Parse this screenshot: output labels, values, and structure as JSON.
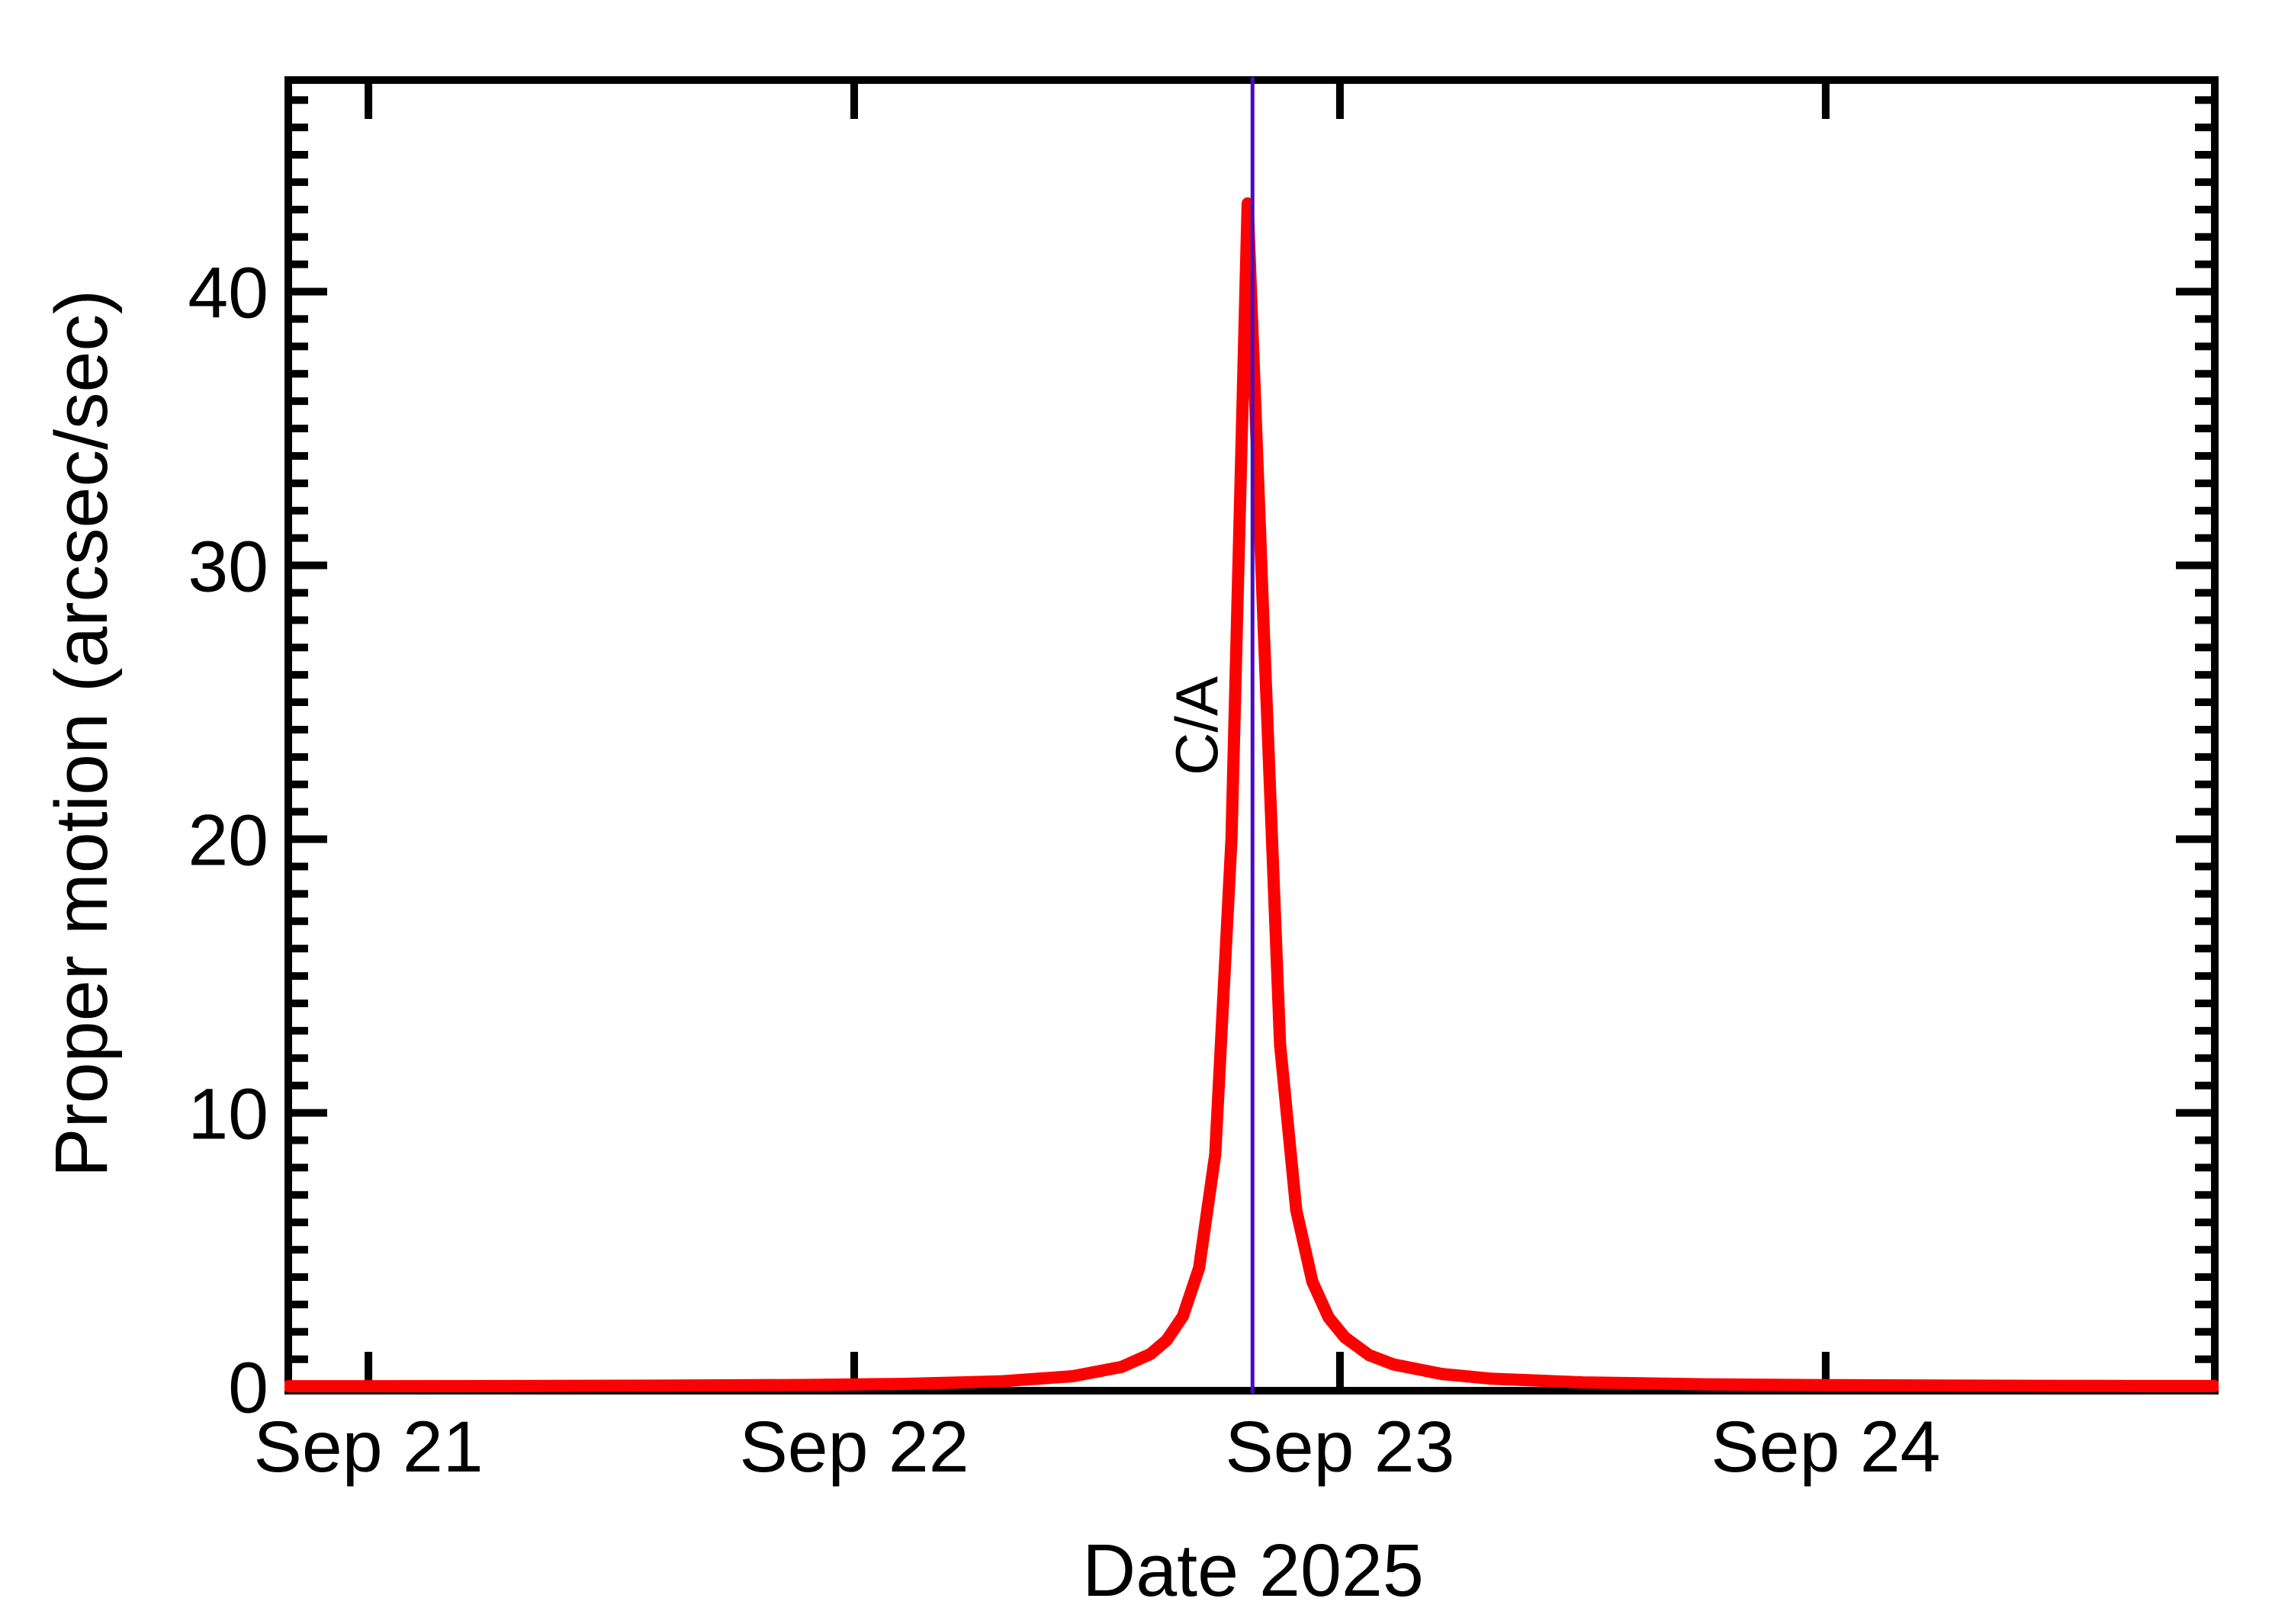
{
  "colors": {
    "background": "#FFFFFF",
    "axis": "#000000",
    "curve": "#FF0000",
    "annotation": "#4A0CC0"
  },
  "chart_data": {
    "type": "line",
    "title": "",
    "xlabel": "Date 2025",
    "ylabel": "Proper motion (arcsec/sec)",
    "x_axis_unit": "days after Sep 21 2025 00:00",
    "xlim": [
      -0.165,
      3.801
    ],
    "ylim": [
      -0.15,
      47.73
    ],
    "grid": false,
    "legend": "none",
    "x_ticks": [
      {
        "t": 0,
        "label": "Sep 21"
      },
      {
        "t": 1,
        "label": "Sep 22"
      },
      {
        "t": 2,
        "label": "Sep 23"
      },
      {
        "t": 3,
        "label": "Sep 24"
      }
    ],
    "y_ticks": [
      {
        "v": 0,
        "label": "0"
      },
      {
        "v": 10,
        "label": "10"
      },
      {
        "v": 20,
        "label": "20"
      },
      {
        "v": 30,
        "label": "30"
      },
      {
        "v": 40,
        "label": "40"
      }
    ],
    "y_minor_step": 1,
    "series": [
      {
        "name": "proper-motion",
        "color": "#FF0000",
        "peak_value_arcsec_per_sec": 43.3,
        "peak_t": 1.81,
        "points": [
          [
            -0.165,
            0.013
          ],
          [
            0.0,
            0.015
          ],
          [
            0.3,
            0.021
          ],
          [
            0.6,
            0.033
          ],
          [
            0.9,
            0.06
          ],
          [
            1.1,
            0.099
          ],
          [
            1.3,
            0.19
          ],
          [
            1.45,
            0.379
          ],
          [
            1.55,
            0.717
          ],
          [
            1.61,
            1.19
          ],
          [
            1.6433,
            1.69
          ],
          [
            1.6767,
            2.57
          ],
          [
            1.71,
            4.33
          ],
          [
            1.7433,
            8.48
          ],
          [
            1.7767,
            20.0
          ],
          [
            1.81,
            43.22
          ],
          [
            1.8433,
            27.6
          ],
          [
            1.8767,
            12.5
          ],
          [
            1.91,
            6.45
          ],
          [
            1.9433,
            3.83
          ],
          [
            1.9767,
            2.52
          ],
          [
            2.01,
            1.8
          ],
          [
            2.06,
            1.15
          ],
          [
            2.11,
            0.81
          ],
          [
            2.21,
            0.46
          ],
          [
            2.31,
            0.29
          ],
          [
            2.5,
            0.154
          ],
          [
            2.75,
            0.083
          ],
          [
            3.0,
            0.052
          ],
          [
            3.3,
            0.033
          ],
          [
            3.6,
            0.023
          ],
          [
            3.8,
            0.019
          ]
        ]
      }
    ],
    "annotation": {
      "label": "C/A",
      "t": 1.82,
      "color": "#4A0CC0",
      "meaning": "closest approach vertical marker"
    }
  }
}
